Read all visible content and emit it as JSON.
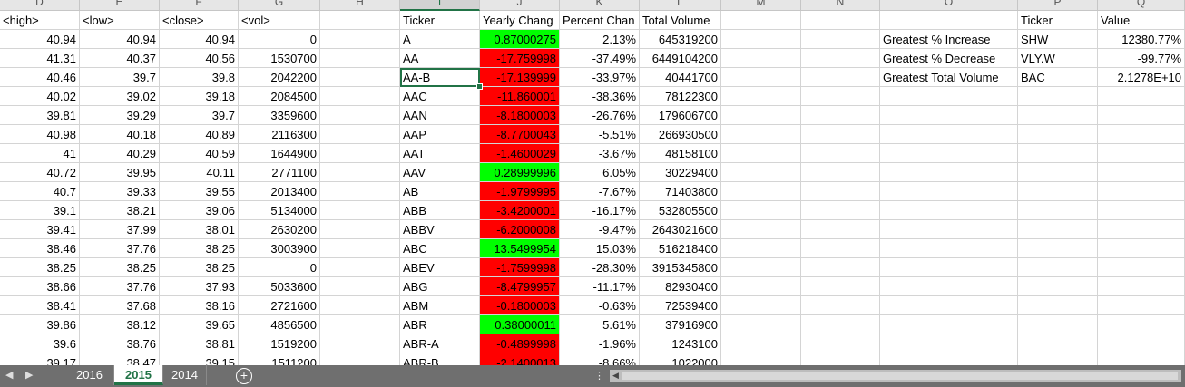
{
  "column_letters": [
    "D",
    "E",
    "F",
    "G",
    "H",
    "I",
    "J",
    "K",
    "L",
    "M",
    "N",
    "O",
    "P",
    "Q"
  ],
  "header_row": {
    "D": "<high>",
    "E": "<low>",
    "F": "<close>",
    "G": "<vol>",
    "I": "Ticker",
    "J": "Yearly Chang",
    "K": "Percent Chan",
    "L": "Total Volume",
    "P": "Ticker",
    "Q": "Value"
  },
  "rows": [
    {
      "high": "40.94",
      "low": "40.94",
      "close": "40.94",
      "vol": "0",
      "ticker": "A",
      "yearly": "0.87000275",
      "pct": "2.13%",
      "total": "645319200",
      "color": "green"
    },
    {
      "high": "41.31",
      "low": "40.37",
      "close": "40.56",
      "vol": "1530700",
      "ticker": "AA",
      "yearly": "-17.759998",
      "pct": "-37.49%",
      "total": "6449104200",
      "color": "red"
    },
    {
      "high": "40.46",
      "low": "39.7",
      "close": "39.8",
      "vol": "2042200",
      "ticker": "AA-B",
      "yearly": "-17.139999",
      "pct": "-33.97%",
      "total": "40441700",
      "color": "red"
    },
    {
      "high": "40.02",
      "low": "39.02",
      "close": "39.18",
      "vol": "2084500",
      "ticker": "AAC",
      "yearly": "-11.860001",
      "pct": "-38.36%",
      "total": "78122300",
      "color": "red"
    },
    {
      "high": "39.81",
      "low": "39.29",
      "close": "39.7",
      "vol": "3359600",
      "ticker": "AAN",
      "yearly": "-8.1800003",
      "pct": "-26.76%",
      "total": "179606700",
      "color": "red"
    },
    {
      "high": "40.98",
      "low": "40.18",
      "close": "40.89",
      "vol": "2116300",
      "ticker": "AAP",
      "yearly": "-8.7700043",
      "pct": "-5.51%",
      "total": "266930500",
      "color": "red"
    },
    {
      "high": "41",
      "low": "40.29",
      "close": "40.59",
      "vol": "1644900",
      "ticker": "AAT",
      "yearly": "-1.4600029",
      "pct": "-3.67%",
      "total": "48158100",
      "color": "red"
    },
    {
      "high": "40.72",
      "low": "39.95",
      "close": "40.11",
      "vol": "2771100",
      "ticker": "AAV",
      "yearly": "0.28999996",
      "pct": "6.05%",
      "total": "30229400",
      "color": "green"
    },
    {
      "high": "40.7",
      "low": "39.33",
      "close": "39.55",
      "vol": "2013400",
      "ticker": "AB",
      "yearly": "-1.9799995",
      "pct": "-7.67%",
      "total": "71403800",
      "color": "red"
    },
    {
      "high": "39.1",
      "low": "38.21",
      "close": "39.06",
      "vol": "5134000",
      "ticker": "ABB",
      "yearly": "-3.4200001",
      "pct": "-16.17%",
      "total": "532805500",
      "color": "red"
    },
    {
      "high": "39.41",
      "low": "37.99",
      "close": "38.01",
      "vol": "2630200",
      "ticker": "ABBV",
      "yearly": "-6.2000008",
      "pct": "-9.47%",
      "total": "2643021600",
      "color": "red"
    },
    {
      "high": "38.46",
      "low": "37.76",
      "close": "38.25",
      "vol": "3003900",
      "ticker": "ABC",
      "yearly": "13.5499954",
      "pct": "15.03%",
      "total": "516218400",
      "color": "green"
    },
    {
      "high": "38.25",
      "low": "38.25",
      "close": "38.25",
      "vol": "0",
      "ticker": "ABEV",
      "yearly": "-1.7599998",
      "pct": "-28.30%",
      "total": "3915345800",
      "color": "red"
    },
    {
      "high": "38.66",
      "low": "37.76",
      "close": "37.93",
      "vol": "5033600",
      "ticker": "ABG",
      "yearly": "-8.4799957",
      "pct": "-11.17%",
      "total": "82930400",
      "color": "red"
    },
    {
      "high": "38.41",
      "low": "37.68",
      "close": "38.16",
      "vol": "2721600",
      "ticker": "ABM",
      "yearly": "-0.1800003",
      "pct": "-0.63%",
      "total": "72539400",
      "color": "red"
    },
    {
      "high": "39.86",
      "low": "38.12",
      "close": "39.65",
      "vol": "4856500",
      "ticker": "ABR",
      "yearly": "0.38000011",
      "pct": "5.61%",
      "total": "37916900",
      "color": "green"
    },
    {
      "high": "39.6",
      "low": "38.76",
      "close": "38.81",
      "vol": "1519200",
      "ticker": "ABR-A",
      "yearly": "-0.4899998",
      "pct": "-1.96%",
      "total": "1243100",
      "color": "red"
    },
    {
      "high": "39.17",
      "low": "38.47",
      "close": "39.15",
      "vol": "1511200",
      "ticker": "ABR-B",
      "yearly": "-2.1400013",
      "pct": "-8.66%",
      "total": "1022000",
      "color": "red"
    }
  ],
  "summary": [
    {
      "label": "Greatest % Increase",
      "ticker": "SHW",
      "value": "12380.77%"
    },
    {
      "label": "Greatest % Decrease",
      "ticker": "VLY.W",
      "value": "-99.77%"
    },
    {
      "label": "Greatest Total Volume",
      "ticker": "BAC",
      "value": "2.1278E+10"
    }
  ],
  "sheet_tabs": [
    "2016",
    "2015",
    "2014"
  ],
  "active_tab": "2015",
  "add_sheet_symbol": "+",
  "colors": {
    "positive": "#00ff00",
    "negative": "#ff0000",
    "accent": "#217346"
  }
}
